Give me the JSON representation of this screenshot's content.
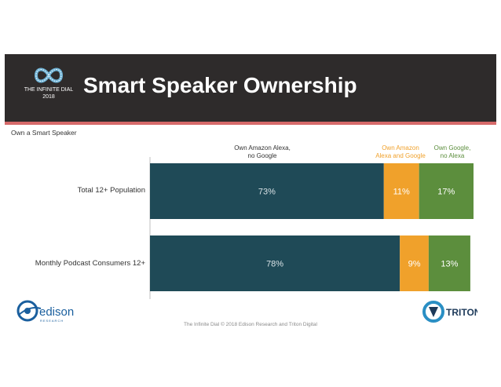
{
  "header": {
    "title": "Smart Speaker Ownership",
    "logo_line1": "THE INFINITE DIAL",
    "logo_line2": "2018"
  },
  "subtitle": "Own a Smart Speaker",
  "footer": {
    "text": "The Infinite Dial   © 2018 Edison Research and Triton Digital"
  },
  "logos": {
    "edison_name": "edison",
    "edison_sub": "RESEARCH",
    "triton_name": "TRITON"
  },
  "colors": {
    "header_bg": "#2e2b2b",
    "stripe": "#d66a6a",
    "amazon": "#1f4a57",
    "both": "#f0a12b",
    "google": "#5c8e3d"
  },
  "chart_data": {
    "type": "bar",
    "orientation": "horizontal",
    "stacked": true,
    "title": "Smart Speaker Ownership",
    "subtitle": "Own a Smart Speaker",
    "categories": [
      "Total 12+ Population",
      "Monthly Podcast Consumers 12+"
    ],
    "series": [
      {
        "name": "Own Amazon Alexa, no Google",
        "values": [
          73,
          78
        ],
        "labels": [
          "73%",
          "78%"
        ],
        "color": "#1f4a57"
      },
      {
        "name": "Own Amazon Alexa and Google",
        "values": [
          11,
          9
        ],
        "labels": [
          "11%",
          "9%"
        ],
        "color": "#f0a12b"
      },
      {
        "name": "Own Google, no Alexa",
        "values": [
          17,
          13
        ],
        "labels": [
          "17%",
          "13%"
        ],
        "color": "#5c8e3d"
      }
    ],
    "legend": [
      {
        "line1": "Own Amazon Alexa,",
        "line2": "no Google"
      },
      {
        "line1": "Own Amazon",
        "line2": "Alexa and Google"
      },
      {
        "line1": "Own Google,",
        "line2": "no Alexa"
      }
    ],
    "xlim": [
      0,
      101
    ],
    "xlabel": "",
    "ylabel": "",
    "grid": false
  }
}
